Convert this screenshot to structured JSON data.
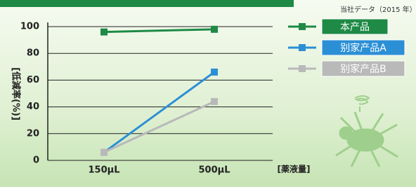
{
  "chart_data": {
    "type": "line",
    "source_note": "当社データ（2015 年）",
    "y_label": "[低減率(%)]",
    "x_label": "[薬液量]",
    "categories": [
      "150μL",
      "500μL"
    ],
    "series": [
      {
        "name": "本产品",
        "color": "#1e8a45",
        "values": [
          96,
          98
        ]
      },
      {
        "name": "别家产品A",
        "color": "#2b8fd6",
        "values": [
          6,
          66
        ]
      },
      {
        "name": "别家产品B",
        "color": "#b9b9b9",
        "values": [
          6,
          44
        ]
      }
    ],
    "ylim": [
      0,
      100
    ],
    "yticks": [
      0,
      20,
      40,
      60,
      80,
      100
    ],
    "grid": true
  }
}
